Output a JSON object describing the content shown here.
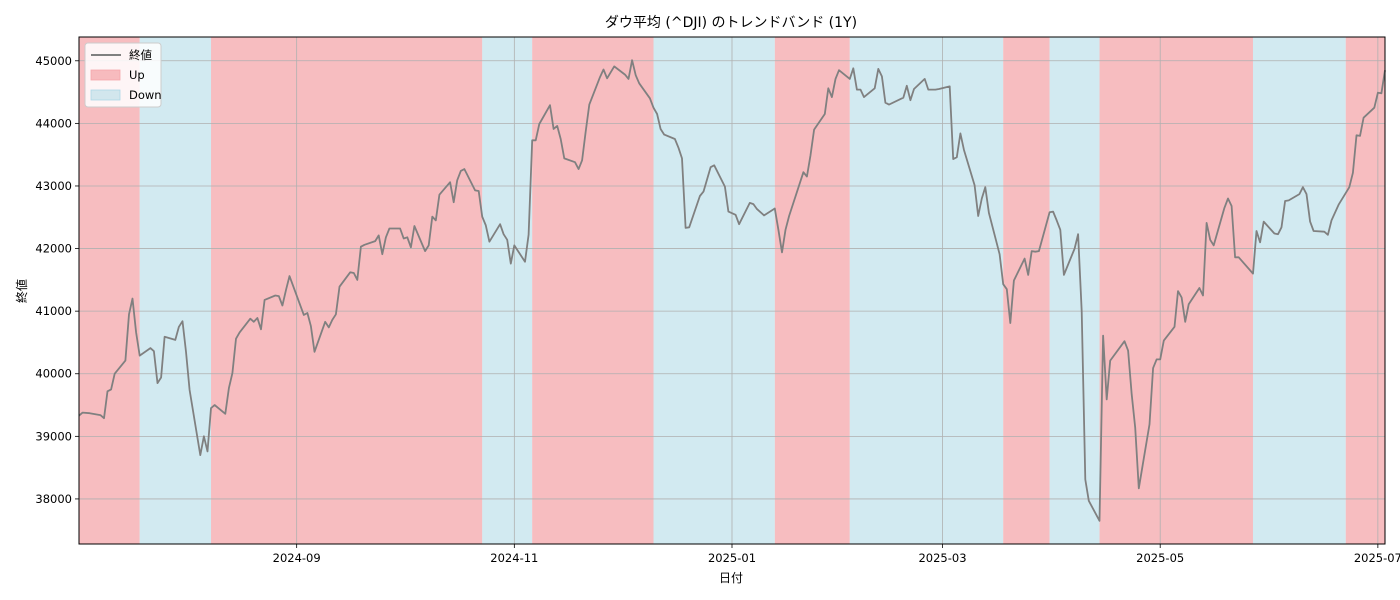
{
  "chart_data": {
    "type": "line",
    "title": "ダウ平均 (^DJI) のトレンドバンド (1Y)",
    "xlabel": "日付",
    "ylabel": "終値",
    "xlim": [
      "2024-07-02",
      "2025-07-03"
    ],
    "ylim": [
      37280,
      45380
    ],
    "grid": true,
    "legend_position": "top-left",
    "legend": [
      {
        "label": "終値",
        "kind": "line",
        "color": "#808080"
      },
      {
        "label": "Up",
        "kind": "band",
        "color": "#f4a7ab"
      },
      {
        "label": "Down",
        "kind": "band",
        "color": "#add8e6"
      }
    ],
    "x_ticks": [
      "2024-09",
      "2024-11",
      "2025-01",
      "2025-03",
      "2025-05",
      "2025-07"
    ],
    "x_tick_dates": [
      "2024-09-01",
      "2024-11-01",
      "2025-01-01",
      "2025-03-01",
      "2025-05-01",
      "2025-07-01"
    ],
    "y_ticks": [
      38000,
      39000,
      40000,
      41000,
      42000,
      43000,
      44000,
      45000
    ],
    "bands": [
      {
        "start": "2024-07-02",
        "end": "2024-07-19",
        "trend": "Up"
      },
      {
        "start": "2024-07-19",
        "end": "2024-08-08",
        "trend": "Down"
      },
      {
        "start": "2024-08-08",
        "end": "2024-10-23",
        "trend": "Up"
      },
      {
        "start": "2024-10-23",
        "end": "2024-11-06",
        "trend": "Down"
      },
      {
        "start": "2024-11-06",
        "end": "2024-12-10",
        "trend": "Up"
      },
      {
        "start": "2024-12-10",
        "end": "2025-01-13",
        "trend": "Down"
      },
      {
        "start": "2025-01-13",
        "end": "2025-02-03",
        "trend": "Up"
      },
      {
        "start": "2025-02-03",
        "end": "2025-03-18",
        "trend": "Down"
      },
      {
        "start": "2025-03-18",
        "end": "2025-03-31",
        "trend": "Up"
      },
      {
        "start": "2025-03-31",
        "end": "2025-04-14",
        "trend": "Down"
      },
      {
        "start": "2025-04-14",
        "end": "2025-05-27",
        "trend": "Up"
      },
      {
        "start": "2025-05-27",
        "end": "2025-06-22",
        "trend": "Down"
      },
      {
        "start": "2025-06-22",
        "end": "2025-07-03",
        "trend": "Up"
      }
    ],
    "series": [
      {
        "name": "終値",
        "color": "#808080",
        "x": [
          "2024-07-02",
          "2024-07-03",
          "2024-07-05",
          "2024-07-08",
          "2024-07-09",
          "2024-07-10",
          "2024-07-11",
          "2024-07-12",
          "2024-07-15",
          "2024-07-16",
          "2024-07-17",
          "2024-07-18",
          "2024-07-19",
          "2024-07-22",
          "2024-07-23",
          "2024-07-24",
          "2024-07-25",
          "2024-07-26",
          "2024-07-29",
          "2024-07-30",
          "2024-07-31",
          "2024-08-01",
          "2024-08-02",
          "2024-08-05",
          "2024-08-06",
          "2024-08-07",
          "2024-08-08",
          "2024-08-09",
          "2024-08-12",
          "2024-08-13",
          "2024-08-14",
          "2024-08-15",
          "2024-08-16",
          "2024-08-19",
          "2024-08-20",
          "2024-08-21",
          "2024-08-22",
          "2024-08-23",
          "2024-08-26",
          "2024-08-27",
          "2024-08-28",
          "2024-08-29",
          "2024-08-30",
          "2024-09-03",
          "2024-09-04",
          "2024-09-05",
          "2024-09-06",
          "2024-09-09",
          "2024-09-10",
          "2024-09-11",
          "2024-09-12",
          "2024-09-13",
          "2024-09-16",
          "2024-09-17",
          "2024-09-18",
          "2024-09-19",
          "2024-09-20",
          "2024-09-23",
          "2024-09-24",
          "2024-09-25",
          "2024-09-26",
          "2024-09-27",
          "2024-09-30",
          "2024-10-01",
          "2024-10-02",
          "2024-10-03",
          "2024-10-04",
          "2024-10-07",
          "2024-10-08",
          "2024-10-09",
          "2024-10-10",
          "2024-10-11",
          "2024-10-14",
          "2024-10-15",
          "2024-10-16",
          "2024-10-17",
          "2024-10-18",
          "2024-10-21",
          "2024-10-22",
          "2024-10-23",
          "2024-10-24",
          "2024-10-25",
          "2024-10-28",
          "2024-10-29",
          "2024-10-30",
          "2024-10-31",
          "2024-11-01",
          "2024-11-04",
          "2024-11-05",
          "2024-11-06",
          "2024-11-07",
          "2024-11-08",
          "2024-11-11",
          "2024-11-12",
          "2024-11-13",
          "2024-11-14",
          "2024-11-15",
          "2024-11-18",
          "2024-11-19",
          "2024-11-20",
          "2024-11-21",
          "2024-11-22",
          "2024-11-25",
          "2024-11-26",
          "2024-11-27",
          "2024-11-29",
          "2024-12-02",
          "2024-12-03",
          "2024-12-04",
          "2024-12-05",
          "2024-12-06",
          "2024-12-09",
          "2024-12-10",
          "2024-12-11",
          "2024-12-12",
          "2024-12-13",
          "2024-12-16",
          "2024-12-17",
          "2024-12-18",
          "2024-12-19",
          "2024-12-20",
          "2024-12-23",
          "2024-12-24",
          "2024-12-26",
          "2024-12-27",
          "2024-12-30",
          "2024-12-31",
          "2025-01-02",
          "2025-01-03",
          "2025-01-06",
          "2025-01-07",
          "2025-01-08",
          "2025-01-10",
          "2025-01-13",
          "2025-01-14",
          "2025-01-15",
          "2025-01-16",
          "2025-01-17",
          "2025-01-21",
          "2025-01-22",
          "2025-01-23",
          "2025-01-24",
          "2025-01-27",
          "2025-01-28",
          "2025-01-29",
          "2025-01-30",
          "2025-01-31",
          "2025-02-03",
          "2025-02-04",
          "2025-02-05",
          "2025-02-06",
          "2025-02-07",
          "2025-02-10",
          "2025-02-11",
          "2025-02-12",
          "2025-02-13",
          "2025-02-14",
          "2025-02-18",
          "2025-02-19",
          "2025-02-20",
          "2025-02-21",
          "2025-02-24",
          "2025-02-25",
          "2025-02-26",
          "2025-02-27",
          "2025-02-28",
          "2025-03-03",
          "2025-03-04",
          "2025-03-05",
          "2025-03-06",
          "2025-03-07",
          "2025-03-10",
          "2025-03-11",
          "2025-03-12",
          "2025-03-13",
          "2025-03-14",
          "2025-03-17",
          "2025-03-18",
          "2025-03-19",
          "2025-03-20",
          "2025-03-21",
          "2025-03-24",
          "2025-03-25",
          "2025-03-26",
          "2025-03-27",
          "2025-03-28",
          "2025-03-31",
          "2025-04-01",
          "2025-04-02",
          "2025-04-03",
          "2025-04-04",
          "2025-04-07",
          "2025-04-08",
          "2025-04-09",
          "2025-04-10",
          "2025-04-11",
          "2025-04-14",
          "2025-04-15",
          "2025-04-16",
          "2025-04-17",
          "2025-04-21",
          "2025-04-22",
          "2025-04-23",
          "2025-04-24",
          "2025-04-25",
          "2025-04-28",
          "2025-04-29",
          "2025-04-30",
          "2025-05-01",
          "2025-05-02",
          "2025-05-05",
          "2025-05-06",
          "2025-05-07",
          "2025-05-08",
          "2025-05-09",
          "2025-05-12",
          "2025-05-13",
          "2025-05-14",
          "2025-05-15",
          "2025-05-16",
          "2025-05-19",
          "2025-05-20",
          "2025-05-21",
          "2025-05-22",
          "2025-05-23",
          "2025-05-27",
          "2025-05-28",
          "2025-05-29",
          "2025-05-30",
          "2025-06-02",
          "2025-06-03",
          "2025-06-04",
          "2025-06-05",
          "2025-06-06",
          "2025-06-09",
          "2025-06-10",
          "2025-06-11",
          "2025-06-12",
          "2025-06-13",
          "2025-06-16",
          "2025-06-17",
          "2025-06-18",
          "2025-06-20",
          "2025-06-23",
          "2025-06-24",
          "2025-06-25",
          "2025-06-26",
          "2025-06-27",
          "2025-06-30",
          "2025-07-01",
          "2025-07-02",
          "2025-07-03"
        ],
        "values": [
          39330,
          39380,
          39370,
          39340,
          39290,
          39720,
          39750,
          40000,
          40210,
          40950,
          41200,
          40660,
          40290,
          40410,
          40360,
          39850,
          39940,
          40590,
          40540,
          40750,
          40840,
          40350,
          39740,
          38700,
          39000,
          38760,
          39450,
          39500,
          39360,
          39770,
          40010,
          40560,
          40660,
          40880,
          40830,
          40890,
          40710,
          41180,
          41250,
          41240,
          41090,
          41340,
          41560,
          40940,
          40970,
          40760,
          40350,
          40830,
          40740,
          40860,
          40950,
          41390,
          41620,
          41610,
          41500,
          42030,
          42060,
          42120,
          42210,
          41910,
          42180,
          42320,
          42320,
          42160,
          42180,
          42020,
          42360,
          41960,
          42050,
          42510,
          42450,
          42860,
          43060,
          42740,
          43090,
          43240,
          43270,
          42930,
          42920,
          42510,
          42370,
          42110,
          42390,
          42230,
          42140,
          41760,
          42050,
          41790,
          42220,
          43730,
          43730,
          43990,
          44290,
          43910,
          43960,
          43750,
          43440,
          43380,
          43270,
          43410,
          43870,
          44300,
          44740,
          44860,
          44720,
          44910,
          44780,
          44710,
          45010,
          44770,
          44640,
          44400,
          44250,
          44150,
          43910,
          43820,
          43750,
          43610,
          43440,
          42330,
          42340,
          42840,
          42910,
          43300,
          43330,
          42990,
          42590,
          42540,
          42390,
          42730,
          42710,
          42630,
          42530,
          42640,
          42300,
          41940,
          42300,
          42520,
          43220,
          43150,
          43490,
          43900,
          44150,
          44560,
          44420,
          44710,
          44850,
          44710,
          44880,
          44540,
          44540,
          44420,
          44560,
          44870,
          44750,
          44330,
          44300,
          44410,
          44600,
          44370,
          44550,
          44710,
          44540,
          44540,
          44540,
          44550,
          44590,
          43430,
          43460,
          43840,
          43580,
          43010,
          42520,
          42800,
          42980,
          42570,
          41910,
          41430,
          41350,
          40810,
          41490,
          41840,
          41580,
          41960,
          41950,
          41960,
          42580,
          42590,
          42450,
          42300,
          41580,
          42000,
          42230,
          41000,
          38310,
          37970,
          37650,
          40610,
          39590,
          40210,
          40520,
          40370,
          39670,
          39140,
          38170,
          39190,
          40090,
          40230,
          40230,
          40530,
          40750,
          41320,
          41220,
          40830,
          41110,
          41370,
          41250,
          42410,
          42140,
          42050,
          42650,
          42800,
          42680,
          41860,
          41860,
          41600,
          42280,
          42100,
          42430,
          42240,
          42230,
          42340,
          42760,
          42770,
          42870,
          42980,
          42870,
          42430,
          42280,
          42270,
          42220,
          42450,
          42700,
          42980,
          43210,
          43810,
          43800,
          44090,
          44250,
          44490,
          44480,
          44850
        ]
      }
    ]
  }
}
